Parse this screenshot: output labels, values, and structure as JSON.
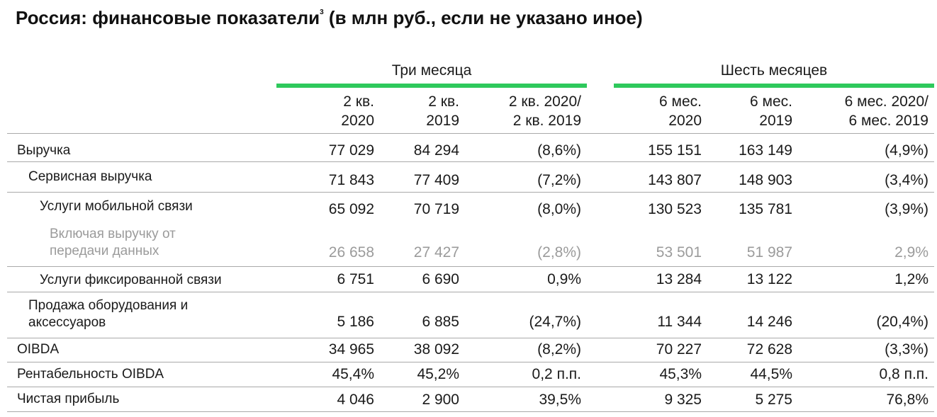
{
  "title": {
    "text": "Россия: финансовые показатели",
    "footnote": "3",
    "suffix": " (в млн руб., если не указано иное)"
  },
  "groups": {
    "three_months": "Три месяца",
    "six_months": "Шесть месяцев"
  },
  "columns": [
    {
      "l1": "2 кв.",
      "l2": "2020"
    },
    {
      "l1": "2 кв.",
      "l2": "2019"
    },
    {
      "l1": "2 кв. 2020/",
      "l2": "2 кв. 2019"
    },
    {
      "l1": "6 мес.",
      "l2": "2020"
    },
    {
      "l1": "6 мес.",
      "l2": "2019"
    },
    {
      "l1": "6 мес. 2020/",
      "l2": "6 мес. 2019"
    }
  ],
  "rows": [
    {
      "l1": "Выручка",
      "l2": "",
      "values": [
        "77 029",
        "84 294",
        "(8,6%)",
        "155 151",
        "163 149",
        "(4,9%)"
      ]
    },
    {
      "l1": "Сервисная выручка",
      "l2": "",
      "values": [
        "71 843",
        "77 409",
        "(7,2%)",
        "143 807",
        "148 903",
        "(3,4%)"
      ]
    },
    {
      "l1": "Услуги мобильной связи",
      "l2": "",
      "values": [
        "65 092",
        "70 719",
        "(8,0%)",
        "130 523",
        "135 781",
        "(3,9%)"
      ]
    },
    {
      "l1": "Включая выручку от",
      "l2": "передачи данных",
      "values": [
        "26 658",
        "27 427",
        "(2,8%)",
        "53 501",
        "51 987",
        "2,9%"
      ]
    },
    {
      "l1": "Услуги фиксированной связи",
      "l2": "",
      "values": [
        "6 751",
        "6 690",
        "0,9%",
        "13 284",
        "13 122",
        "1,2%"
      ]
    },
    {
      "l1": "Продажа оборудования и",
      "l2": "аксессуаров",
      "values": [
        "5 186",
        "6 885",
        "(24,7%)",
        "11 344",
        "14 246",
        "(20,4%)"
      ]
    },
    {
      "l1": "OIBDA",
      "l2": "",
      "values": [
        "34 965",
        "38 092",
        "(8,2%)",
        "70 227",
        "72 628",
        "(3,3%)"
      ]
    },
    {
      "l1": "Рентабельность OIBDA",
      "l2": "",
      "values": [
        "45,4%",
        "45,2%",
        "0,2 п.п.",
        "45,3%",
        "44,5%",
        "0,8 п.п."
      ]
    },
    {
      "l1": "Чистая прибыль",
      "l2": "",
      "values": [
        "4 046",
        "2 900",
        "39,5%",
        "9 325",
        "5 275",
        "76,8%"
      ]
    }
  ],
  "colors": {
    "accent_bar": "#2ec95c",
    "muted_text": "#9b9b9b",
    "rule": "#a9a9a9"
  }
}
